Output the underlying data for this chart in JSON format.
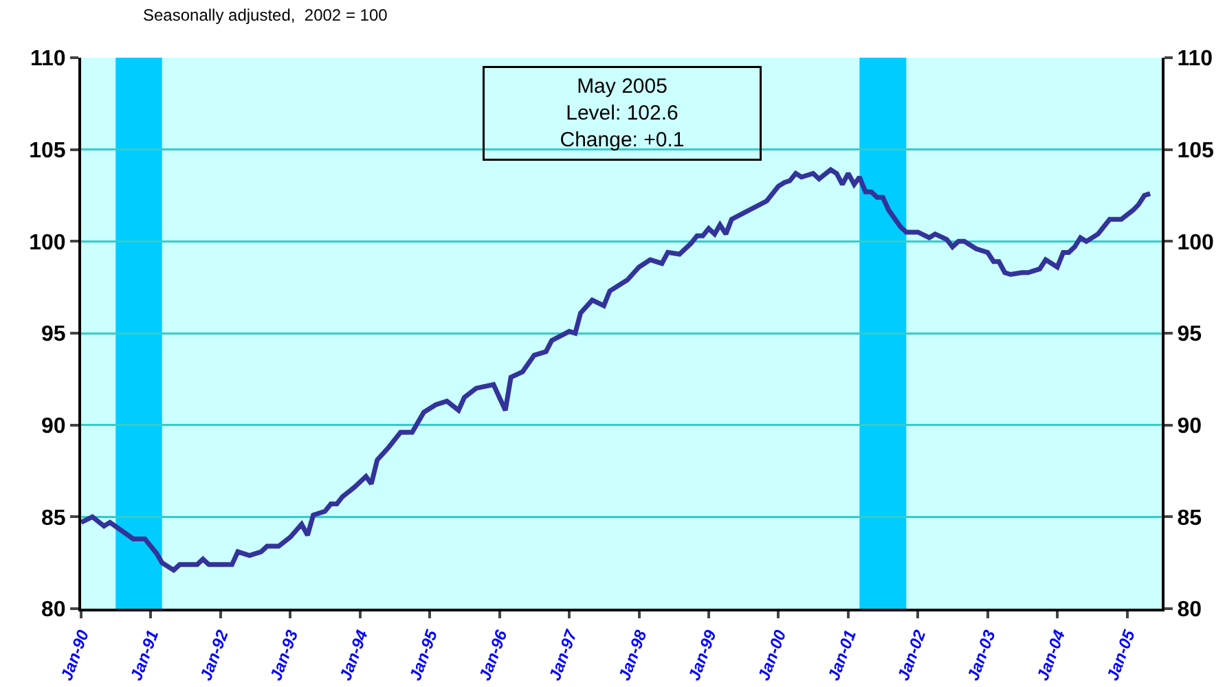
{
  "chart_data": {
    "type": "line",
    "subtitle": "Seasonally adjusted,  2002 = 100",
    "annotations": [
      "May 2005",
      "Level: 102.6",
      "Change: +0.1"
    ],
    "x": [
      "1990-01",
      "1990-03",
      "1990-05",
      "1990-06",
      "1990-10",
      "1990-12",
      "1991-02",
      "1991-03",
      "1991-05",
      "1991-06",
      "1991-09",
      "1991-10",
      "1991-11",
      "1992-03",
      "1992-04",
      "1992-06",
      "1992-08",
      "1992-09",
      "1992-11",
      "1993-01",
      "1993-03",
      "1993-04",
      "1993-05",
      "1993-07",
      "1993-08",
      "1993-09",
      "1993-10",
      "1993-12",
      "1994-02",
      "1994-03",
      "1994-04",
      "1994-06",
      "1994-07",
      "1994-08",
      "1994-10",
      "1994-12",
      "1995-02",
      "1995-04",
      "1995-06",
      "1995-07",
      "1995-09",
      "1995-12",
      "1996-02",
      "1996-03",
      "1996-05",
      "1996-07",
      "1996-09",
      "1996-10",
      "1997-01",
      "1997-02",
      "1997-03",
      "1997-05",
      "1997-07",
      "1997-08",
      "1997-11",
      "1998-01",
      "1998-03",
      "1998-05",
      "1998-06",
      "1998-08",
      "1998-10",
      "1998-11",
      "1998-12",
      "1999-01",
      "1999-02",
      "1999-03",
      "1999-04",
      "1999-05",
      "1999-08",
      "1999-11",
      "2000-01",
      "2000-02",
      "2000-03",
      "2000-04",
      "2000-05",
      "2000-07",
      "2000-08",
      "2000-10",
      "2000-11",
      "2000-12",
      "2001-01",
      "2001-02",
      "2001-03",
      "2001-04",
      "2001-05",
      "2001-06",
      "2001-07",
      "2001-08",
      "2001-10",
      "2001-11",
      "2002-01",
      "2002-03",
      "2002-04",
      "2002-06",
      "2002-07",
      "2002-08",
      "2002-09",
      "2002-11",
      "2003-01",
      "2003-02",
      "2003-03",
      "2003-04",
      "2003-05",
      "2003-07",
      "2003-08",
      "2003-10",
      "2003-11",
      "2004-01",
      "2004-02",
      "2004-03",
      "2004-04",
      "2004-05",
      "2004-06",
      "2004-08",
      "2004-10",
      "2004-12",
      "2005-02",
      "2005-03",
      "2005-04",
      "2005-05"
    ],
    "series": [
      {
        "color": "#333399",
        "values": [
          84.7,
          85.0,
          84.5,
          84.7,
          83.8,
          83.8,
          83.0,
          82.5,
          82.1,
          82.4,
          82.4,
          82.7,
          82.4,
          82.4,
          83.1,
          82.9,
          83.1,
          83.4,
          83.4,
          83.9,
          84.6,
          84.0,
          85.1,
          85.3,
          85.7,
          85.7,
          86.1,
          86.6,
          87.2,
          86.8,
          88.1,
          88.8,
          89.2,
          89.6,
          89.6,
          90.7,
          91.1,
          91.3,
          90.8,
          91.5,
          92.0,
          92.2,
          90.8,
          92.6,
          92.9,
          93.8,
          94.0,
          94.6,
          95.1,
          95.0,
          96.1,
          96.8,
          96.5,
          97.3,
          97.9,
          98.6,
          99.0,
          98.8,
          99.4,
          99.3,
          99.9,
          100.3,
          100.3,
          100.7,
          100.4,
          100.9,
          100.4,
          101.2,
          101.7,
          102.2,
          103.0,
          103.2,
          103.3,
          103.7,
          103.5,
          103.7,
          103.4,
          103.9,
          103.7,
          103.1,
          103.7,
          103.1,
          103.5,
          102.7,
          102.7,
          102.4,
          102.4,
          101.7,
          100.8,
          100.5,
          100.5,
          100.2,
          100.4,
          100.1,
          99.7,
          100.0,
          100.0,
          99.6,
          99.4,
          98.9,
          98.9,
          98.3,
          98.2,
          98.3,
          98.3,
          98.5,
          99.0,
          98.6,
          99.4,
          99.4,
          99.7,
          100.2,
          100.0,
          100.4,
          101.2,
          101.2,
          101.7,
          102.0,
          102.5,
          102.6
        ]
      }
    ],
    "xlim": [
      "1990-01",
      "2005-07"
    ],
    "xticks": [
      {
        "value": "1990-01",
        "label": "Jan-90"
      },
      {
        "value": "1991-01",
        "label": "Jan-91"
      },
      {
        "value": "1992-01",
        "label": "Jan-92"
      },
      {
        "value": "1993-01",
        "label": "Jan-93"
      },
      {
        "value": "1994-01",
        "label": "Jan-94"
      },
      {
        "value": "1995-01",
        "label": "Jan-95"
      },
      {
        "value": "1996-01",
        "label": "Jan-96"
      },
      {
        "value": "1997-01",
        "label": "Jan-97"
      },
      {
        "value": "1998-01",
        "label": "Jan-98"
      },
      {
        "value": "1999-01",
        "label": "Jan-99"
      },
      {
        "value": "2000-01",
        "label": "Jan-00"
      },
      {
        "value": "2001-01",
        "label": "Jan-01"
      },
      {
        "value": "2002-01",
        "label": "Jan-02"
      },
      {
        "value": "2003-01",
        "label": "Jan-03"
      },
      {
        "value": "2004-01",
        "label": "Jan-04"
      },
      {
        "value": "2005-01",
        "label": "Jan-05"
      }
    ],
    "ylim": [
      80,
      110
    ],
    "yticks": [
      80,
      85,
      90,
      95,
      100,
      105,
      110
    ],
    "y2lim": [
      80,
      110
    ],
    "y2ticks": [
      80,
      85,
      90,
      95,
      100,
      105,
      110
    ],
    "bands": [
      {
        "axis": "x",
        "from": "1990-07",
        "to": "1991-03",
        "color": "#00ccff"
      },
      {
        "axis": "x",
        "from": "2001-03",
        "to": "2001-11",
        "color": "#00ccff"
      }
    ],
    "grid": "y",
    "marker": "none",
    "line_style": "solid"
  }
}
